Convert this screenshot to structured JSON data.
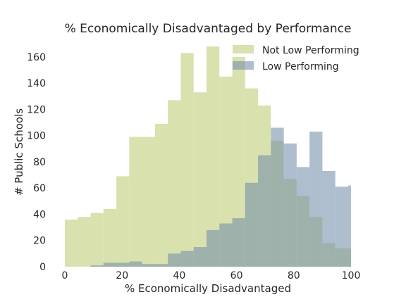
{
  "chart_data": {
    "type": "bar",
    "subtype": "overlapping-histogram",
    "title": "% Economically Disadvantaged by Performance",
    "xlabel": "% Economically Disadvantaged",
    "ylabel": "# Public Schools",
    "xlim": [
      0,
      100
    ],
    "ylim": [
      0,
      168
    ],
    "xticks": [
      0,
      20,
      40,
      60,
      80,
      100
    ],
    "yticks": [
      0,
      20,
      40,
      60,
      80,
      100,
      120,
      140,
      160
    ],
    "grid": false,
    "legend_position": "top-right",
    "bin_edges": [
      0,
      4.5,
      9,
      13.5,
      18,
      22.5,
      27,
      31.5,
      36,
      40.5,
      45,
      49.5,
      54,
      58.5,
      63,
      67.5,
      72,
      76.5,
      81,
      85.5,
      90,
      94.5,
      99,
      100
    ],
    "series": [
      {
        "name": "Not Low Performing",
        "color": "#bfcf7a",
        "opacity": 0.6,
        "bins": [
          {
            "x0": 0,
            "x1": 4.5,
            "count": 36
          },
          {
            "x0": 4.5,
            "x1": 9,
            "count": 38
          },
          {
            "x0": 9,
            "x1": 13.5,
            "count": 41
          },
          {
            "x0": 13.5,
            "x1": 18,
            "count": 44
          },
          {
            "x0": 18,
            "x1": 22.5,
            "count": 69
          },
          {
            "x0": 22.5,
            "x1": 31.5,
            "count": 99
          },
          {
            "x0": 31.5,
            "x1": 36,
            "count": 109
          },
          {
            "x0": 36,
            "x1": 40.5,
            "count": 127
          },
          {
            "x0": 40.5,
            "x1": 45,
            "count": 163
          },
          {
            "x0": 45,
            "x1": 49.5,
            "count": 133
          },
          {
            "x0": 49.5,
            "x1": 54,
            "count": 168
          },
          {
            "x0": 54,
            "x1": 58.5,
            "count": 145
          },
          {
            "x0": 58.5,
            "x1": 63,
            "count": 160
          },
          {
            "x0": 63,
            "x1": 67.5,
            "count": 136
          },
          {
            "x0": 67.5,
            "x1": 72,
            "count": 123
          },
          {
            "x0": 72,
            "x1": 76.5,
            "count": 96
          },
          {
            "x0": 76.5,
            "x1": 81,
            "count": 67
          },
          {
            "x0": 81,
            "x1": 85.5,
            "count": 54
          },
          {
            "x0": 85.5,
            "x1": 90,
            "count": 38
          },
          {
            "x0": 90,
            "x1": 94.5,
            "count": 18
          },
          {
            "x0": 94.5,
            "x1": 99,
            "count": 14
          },
          {
            "x0": 99,
            "x1": 100,
            "count": 14
          }
        ]
      },
      {
        "name": "Low Performing",
        "color": "#6e88a8",
        "opacity": 0.55,
        "bins": [
          {
            "x0": 9,
            "x1": 13.5,
            "count": 1
          },
          {
            "x0": 13.5,
            "x1": 22.5,
            "count": 3
          },
          {
            "x0": 22.5,
            "x1": 27,
            "count": 4
          },
          {
            "x0": 27,
            "x1": 31.5,
            "count": 2
          },
          {
            "x0": 31.5,
            "x1": 36,
            "count": 2
          },
          {
            "x0": 36,
            "x1": 40.5,
            "count": 10
          },
          {
            "x0": 40.5,
            "x1": 45,
            "count": 12
          },
          {
            "x0": 45,
            "x1": 49.5,
            "count": 15
          },
          {
            "x0": 49.5,
            "x1": 54,
            "count": 28
          },
          {
            "x0": 54,
            "x1": 58.5,
            "count": 33
          },
          {
            "x0": 58.5,
            "x1": 63,
            "count": 37
          },
          {
            "x0": 63,
            "x1": 67.5,
            "count": 64
          },
          {
            "x0": 67.5,
            "x1": 72,
            "count": 85
          },
          {
            "x0": 72,
            "x1": 76.5,
            "count": 106
          },
          {
            "x0": 76.5,
            "x1": 81,
            "count": 94
          },
          {
            "x0": 81,
            "x1": 85.5,
            "count": 76
          },
          {
            "x0": 85.5,
            "x1": 90,
            "count": 103
          },
          {
            "x0": 90,
            "x1": 94.5,
            "count": 73
          },
          {
            "x0": 94.5,
            "x1": 99,
            "count": 61
          },
          {
            "x0": 99,
            "x1": 100,
            "count": 62
          }
        ]
      }
    ]
  }
}
